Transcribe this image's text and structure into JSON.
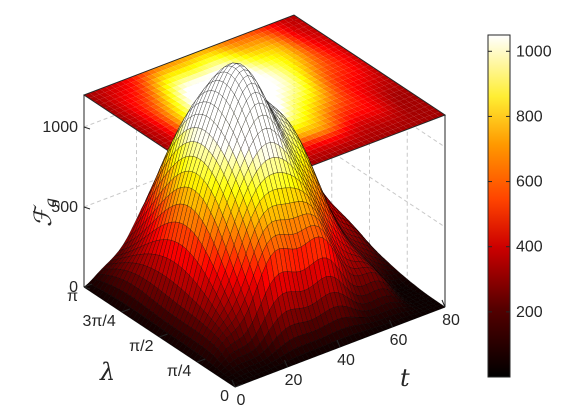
{
  "chart_data": {
    "type": "surface",
    "title": "",
    "zlabel": "ℱ",
    "zlabel_sub": "g",
    "xlabel": "t",
    "ylabel": "λ",
    "x_ticks": [
      "0",
      "20",
      "40",
      "60",
      "80"
    ],
    "y_ticks": [
      "0",
      "π/4",
      "π/2",
      "3π/4",
      "π"
    ],
    "z_ticks": [
      "0",
      "500",
      "1000"
    ],
    "x_range": [
      0,
      80
    ],
    "y_range": [
      0,
      3.1416
    ],
    "z_range": [
      0,
      1200
    ],
    "colorbar": {
      "range": [
        0,
        1050
      ],
      "ticks": [
        "200",
        "400",
        "600",
        "800",
        "1000"
      ],
      "colormap": "hot"
    },
    "projection": "top-face heatmap of the surface",
    "grid": true,
    "colors": {
      "low": "#000000",
      "mid": "#ff3300",
      "high": "#ffffff",
      "mesh": "#000000",
      "grid": "#c8c8c8"
    },
    "surface_description": {
      "peak_value": 1050,
      "peak_t": 42,
      "peak_lambda": 1.9,
      "baseline_value": 0
    }
  }
}
